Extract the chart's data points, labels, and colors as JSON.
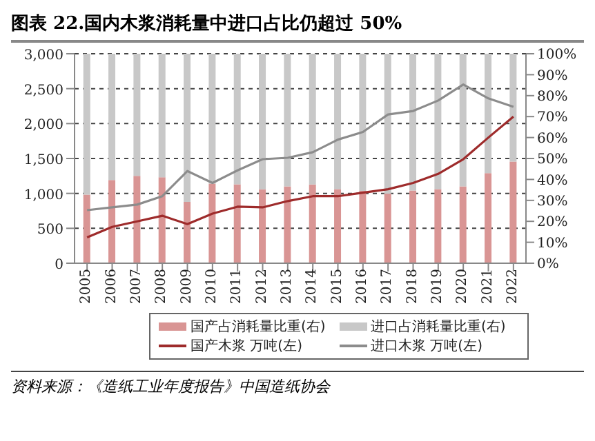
{
  "chart_data": {
    "type": "bar",
    "stacked": true,
    "title": "图表 22.国内木浆消耗量中进口占比仍超过 50%",
    "categories": [
      "2005",
      "2006",
      "2007",
      "2008",
      "2009",
      "2010",
      "2011",
      "2012",
      "2013",
      "2014",
      "2015",
      "2016",
      "2017",
      "2018",
      "2019",
      "2020",
      "2021",
      "2022"
    ],
    "series": [
      {
        "name": "国产占消耗量比重(右)",
        "axis": "y2",
        "color": "#d99594",
        "values": [
          32.7,
          39.7,
          41.7,
          41,
          29.3,
          38,
          37.7,
          35.3,
          36.7,
          37.6,
          35.4,
          34.5,
          33.2,
          34.7,
          35.4,
          36.7,
          43,
          48.5
        ]
      },
      {
        "name": "进口占消耗量比重(右)",
        "axis": "y2",
        "color": "#c8c8c8",
        "values": [
          67.3,
          60.3,
          58.3,
          59,
          70.7,
          62,
          62.3,
          64.7,
          63.3,
          62.4,
          64.6,
          65.5,
          66.8,
          65.3,
          64.6,
          63.3,
          57,
          51.5
        ]
      },
      {
        "name": "国产木浆 万吨(左)",
        "type": "line",
        "color": "#9e2b2b",
        "values": [
          370,
          520,
          600,
          680,
          560,
          710,
          810,
          800,
          890,
          960,
          960,
          1010,
          1060,
          1150,
          1280,
          1490,
          1800,
          2100
        ]
      },
      {
        "name": "进口木浆 万吨(左)",
        "type": "line",
        "color": "#8c8c8c",
        "values": [
          760,
          800,
          840,
          960,
          1320,
          1150,
          1330,
          1490,
          1510,
          1590,
          1770,
          1880,
          2130,
          2180,
          2330,
          2560,
          2360,
          2240
        ]
      }
    ],
    "ylim": [
      0,
      3000
    ],
    "yticks": [
      0,
      500,
      {
        "value": 1000,
        "label": "1,000"
      },
      {
        "value": 1500,
        "label": "1,500"
      },
      {
        "value": 2000,
        "label": "2,000"
      },
      {
        "value": 2500,
        "label": "2,500"
      },
      {
        "value": 3000,
        "label": "3,000"
      }
    ],
    "y2lim": [
      0,
      100
    ],
    "y2ticks": [
      {
        "value": 0,
        "label": "0%"
      },
      {
        "value": 10,
        "label": "10%"
      },
      {
        "value": 20,
        "label": "20%"
      },
      {
        "value": 30,
        "label": "30%"
      },
      {
        "value": 40,
        "label": "40%"
      },
      {
        "value": 50,
        "label": "50%"
      },
      {
        "value": 60,
        "label": "60%"
      },
      {
        "value": 70,
        "label": "70%"
      },
      {
        "value": 80,
        "label": "80%"
      },
      {
        "value": 90,
        "label": "90%"
      },
      {
        "value": 100,
        "label": "100%"
      }
    ],
    "grid": "y",
    "legend": "bottom",
    "marker": "none",
    "line_style": "solid",
    "annotations": [
      "资料来源：《造纸工业年度报告》中国造纸协会"
    ]
  }
}
